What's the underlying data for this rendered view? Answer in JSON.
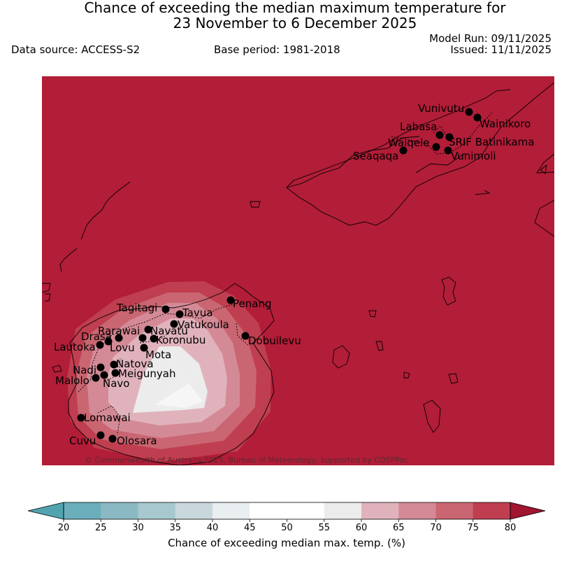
{
  "header": {
    "title_line1": "Chance of exceeding the median maximum temperature for",
    "title_line2": "23 November to 6 December 2025",
    "data_source": "Data source: ACCESS-S2",
    "base_period": "Base period: 1981-2018",
    "model_run": "Model Run: 09/11/2025",
    "issued": "Issued: 11/11/2025"
  },
  "map": {
    "background_color": "#b21d38",
    "copyright": "© Commonwealth of Australia 2025, Bureau of Meteorology, supported by COSPPac",
    "stations": [
      {
        "name": "Vunivutu"
      },
      {
        "name": "Wainikoro"
      },
      {
        "name": "Labasa"
      },
      {
        "name": "SRIF Batinikama"
      },
      {
        "name": "Waiqele"
      },
      {
        "name": "Vunimoli"
      },
      {
        "name": "Seaqaqa"
      },
      {
        "name": "Penang"
      },
      {
        "name": "Tagitagi"
      },
      {
        "name": "Tavua"
      },
      {
        "name": "Vatukoula"
      },
      {
        "name": "Rarawai"
      },
      {
        "name": "Navatu"
      },
      {
        "name": "Drasa"
      },
      {
        "name": "Koronubu"
      },
      {
        "name": "Lautoka"
      },
      {
        "name": "Lovu"
      },
      {
        "name": "Mota"
      },
      {
        "name": "Dobuilevu"
      },
      {
        "name": "Natova"
      },
      {
        "name": "Nadi"
      },
      {
        "name": "Meigunyah"
      },
      {
        "name": "Malolo"
      },
      {
        "name": "Navo"
      },
      {
        "name": "Lomawai"
      },
      {
        "name": "Cuvu"
      },
      {
        "name": "Olosara"
      }
    ]
  },
  "colorbar": {
    "label": "Chance of exceeding median max. temp. (%)",
    "ticks": [
      "20",
      "25",
      "30",
      "35",
      "40",
      "45",
      "50",
      "55",
      "60",
      "65",
      "70",
      "75",
      "80"
    ],
    "under_color": "#52a3b0",
    "over_color": "#a01530",
    "bin_colors": [
      "#6aaebc",
      "#8ab9c4",
      "#a7c8ce",
      "#c8d8dc",
      "#e9eef0",
      "#ffffff",
      "#ffffff",
      "#ececec",
      "#e0b3bc",
      "#d48a96",
      "#c96671",
      "#bf3e4f"
    ]
  }
}
